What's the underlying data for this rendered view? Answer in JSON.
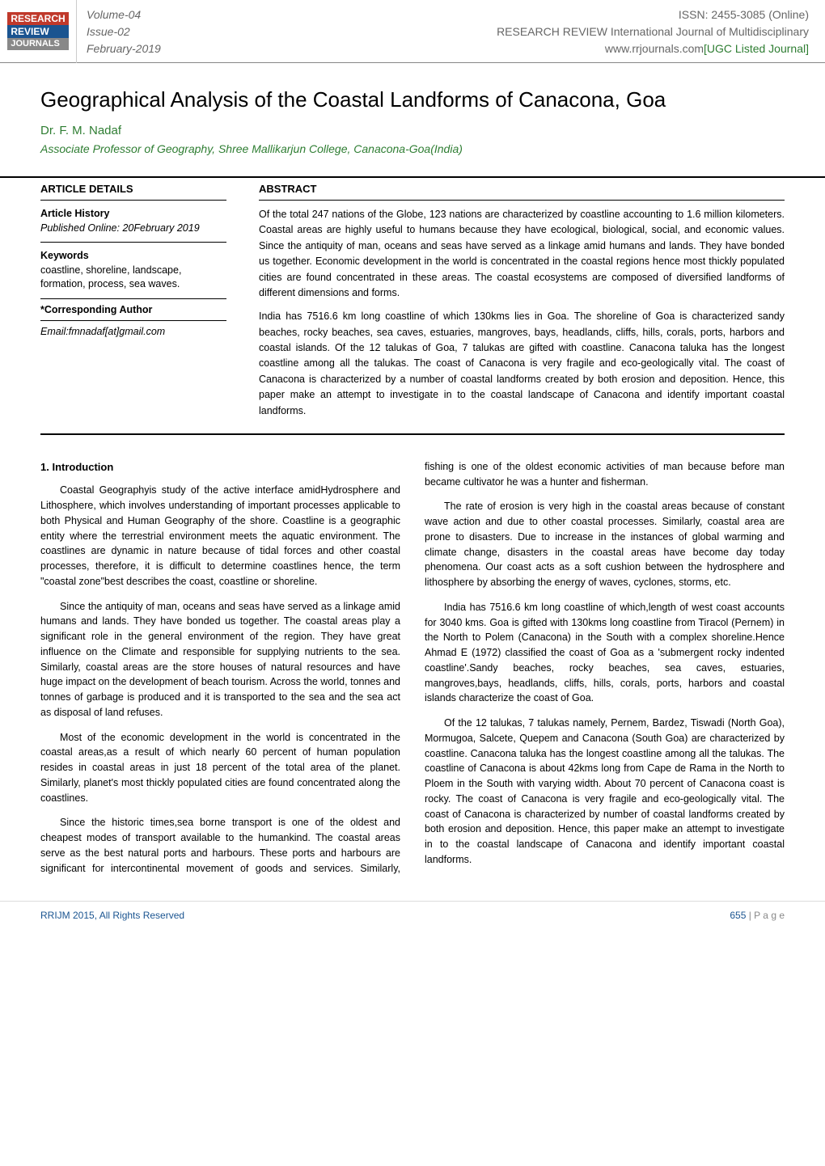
{
  "header": {
    "logo": {
      "line1": "RESEARCH",
      "line2": "REVIEW",
      "line3": "JOURNALS"
    },
    "volume": "Volume-04",
    "issue": "Issue-02",
    "month": "February-2019",
    "issn": "ISSN: 2455-3085 (Online)",
    "journal_name": "RESEARCH REVIEW International Journal of Multidisciplinary",
    "url": "www.rrjournals.com",
    "ugc": "[UGC Listed Journal]"
  },
  "title": "Geographical Analysis of the Coastal Landforms of Canacona, Goa",
  "author": "Dr. F. M. Nadaf",
  "affiliation": "Associate Professor of Geography, Shree Mallikarjun College, Canacona-Goa(India)",
  "details": {
    "heading": "ARTICLE DETAILS",
    "history_label": "Article History",
    "history_value": "Published Online: 20February 2019",
    "keywords_label": "Keywords",
    "keywords_value": "coastline, shoreline, landscape, formation, process, sea waves.",
    "corr_label": "*Corresponding Author",
    "corr_email": "Email:fmnadaf[at]gmail.com"
  },
  "abstract": {
    "heading": "ABSTRACT",
    "para1": "Of the total 247 nations of the Globe, 123 nations are characterized by coastline accounting to 1.6 million kilometers. Coastal areas are highly useful to humans because they have ecological, biological, social, and economic values. Since the antiquity of man, oceans and seas have served as a linkage amid humans and lands. They have bonded us together. Economic development in the world is concentrated in the coastal regions hence most thickly populated cities are found concentrated in these areas. The coastal ecosystems are composed of diversified landforms of different dimensions and forms.",
    "para2": "India has 7516.6 km long coastline of which 130kms lies in Goa. The shoreline of Goa is characterized sandy beaches, rocky beaches, sea caves, estuaries, mangroves, bays, headlands, cliffs, hills, corals, ports, harbors and coastal islands. Of the 12 talukas of Goa, 7 talukas are gifted with coastline. Canacona taluka has the longest coastline among all the talukas. The coast of Canacona is very fragile and eco-geologically vital. The coast of Canacona is characterized by a number of coastal landforms created by both erosion and deposition. Hence, this paper make an attempt to investigate in to the coastal landscape of Canacona and identify important coastal landforms."
  },
  "body": {
    "heading": "1. Introduction",
    "p1": "Coastal Geographyis study of the active interface amidHydrosphere and Lithosphere, which involves understanding of important processes applicable to both Physical and Human Geography of the shore. Coastline is a geographic entity where the terrestrial environment meets the aquatic environment. The coastlines are dynamic in nature because of tidal forces and other coastal processes, therefore, it is difficult to determine coastlines hence, the term \"coastal zone\"best describes the coast, coastline or shoreline.",
    "p2": "Since the antiquity of man, oceans and seas have served as a linkage amid humans and lands. They have bonded us together. The coastal areas play a significant role in the general environment of the region. They have great influence on the Climate and responsible for supplying nutrients to the sea. Similarly, coastal areas are the store houses of natural resources and have huge impact on the development of beach tourism. Across the world, tonnes and tonnes of garbage is produced and it is transported to the sea and the sea act as disposal of land refuses.",
    "p3": "Most of the economic development in the world is concentrated in the coastal areas,as a result of which nearly 60 percent of human population resides in coastal areas in just 18 percent of the total area of the planet. Similarly, planet's most thickly populated cities are found concentrated along the coastlines.",
    "p4": "Since the historic times,sea borne transport is one of the oldest and cheapest modes of transport available to the humankind. The coastal areas serve as the best natural ports and harbours. These ports and harbours are significant for intercontinental movement of goods and services. Similarly, fishing is one of the oldest economic activities of man because before man became cultivator he was a hunter and fisherman.",
    "p5": "The rate of erosion is very high in the coastal areas because of constant wave action and due to other coastal processes. Similarly, coastal area are prone to disasters. Due to increase in the instances of global warming and climate change, disasters in the coastal areas have become day today phenomena. Our coast acts as a soft cushion between the hydrosphere and lithosphere by absorbing the energy of waves, cyclones, storms, etc.",
    "p6": "India has 7516.6 km long coastline of which,length of west coast accounts for 3040 kms. Goa is gifted with 130kms long coastline from Tiracol (Pernem) in the North to Polem (Canacona) in the South with a complex shoreline.Hence Ahmad E (1972) classified the coast of Goa as a 'submergent rocky indented coastline'.Sandy beaches, rocky beaches, sea caves, estuaries, mangroves,bays, headlands, cliffs, hills, corals, ports, harbors and coastal islands characterize the coast of Goa.",
    "p7": "Of the 12 talukas, 7 talukas namely, Pernem, Bardez, Tiswadi (North Goa), Mormugoa, Salcete, Quepem and Canacona (South Goa) are characterized by coastline. Canacona taluka has the longest coastline among all the talukas. The coastline of Canacona is about 42kms long from Cape de Rama in the North to Ploem in the South with varying width. About 70 percent of Canacona coast is rocky. The coast of Canacona is very fragile and eco-geologically vital. The coast of Canacona is characterized by number of coastal landforms created by both erosion and deposition. Hence, this paper make an attempt to investigate in to the coastal landscape of Canacona and identify important coastal landforms."
  },
  "footer": {
    "left": "RRIJM 2015, All Rights Reserved",
    "pagenum": "655",
    "pagelabel": "| P a g e"
  },
  "colors": {
    "green": "#2e7d32",
    "blue": "#1a5490",
    "red": "#c0392b",
    "gray": "#868686"
  }
}
